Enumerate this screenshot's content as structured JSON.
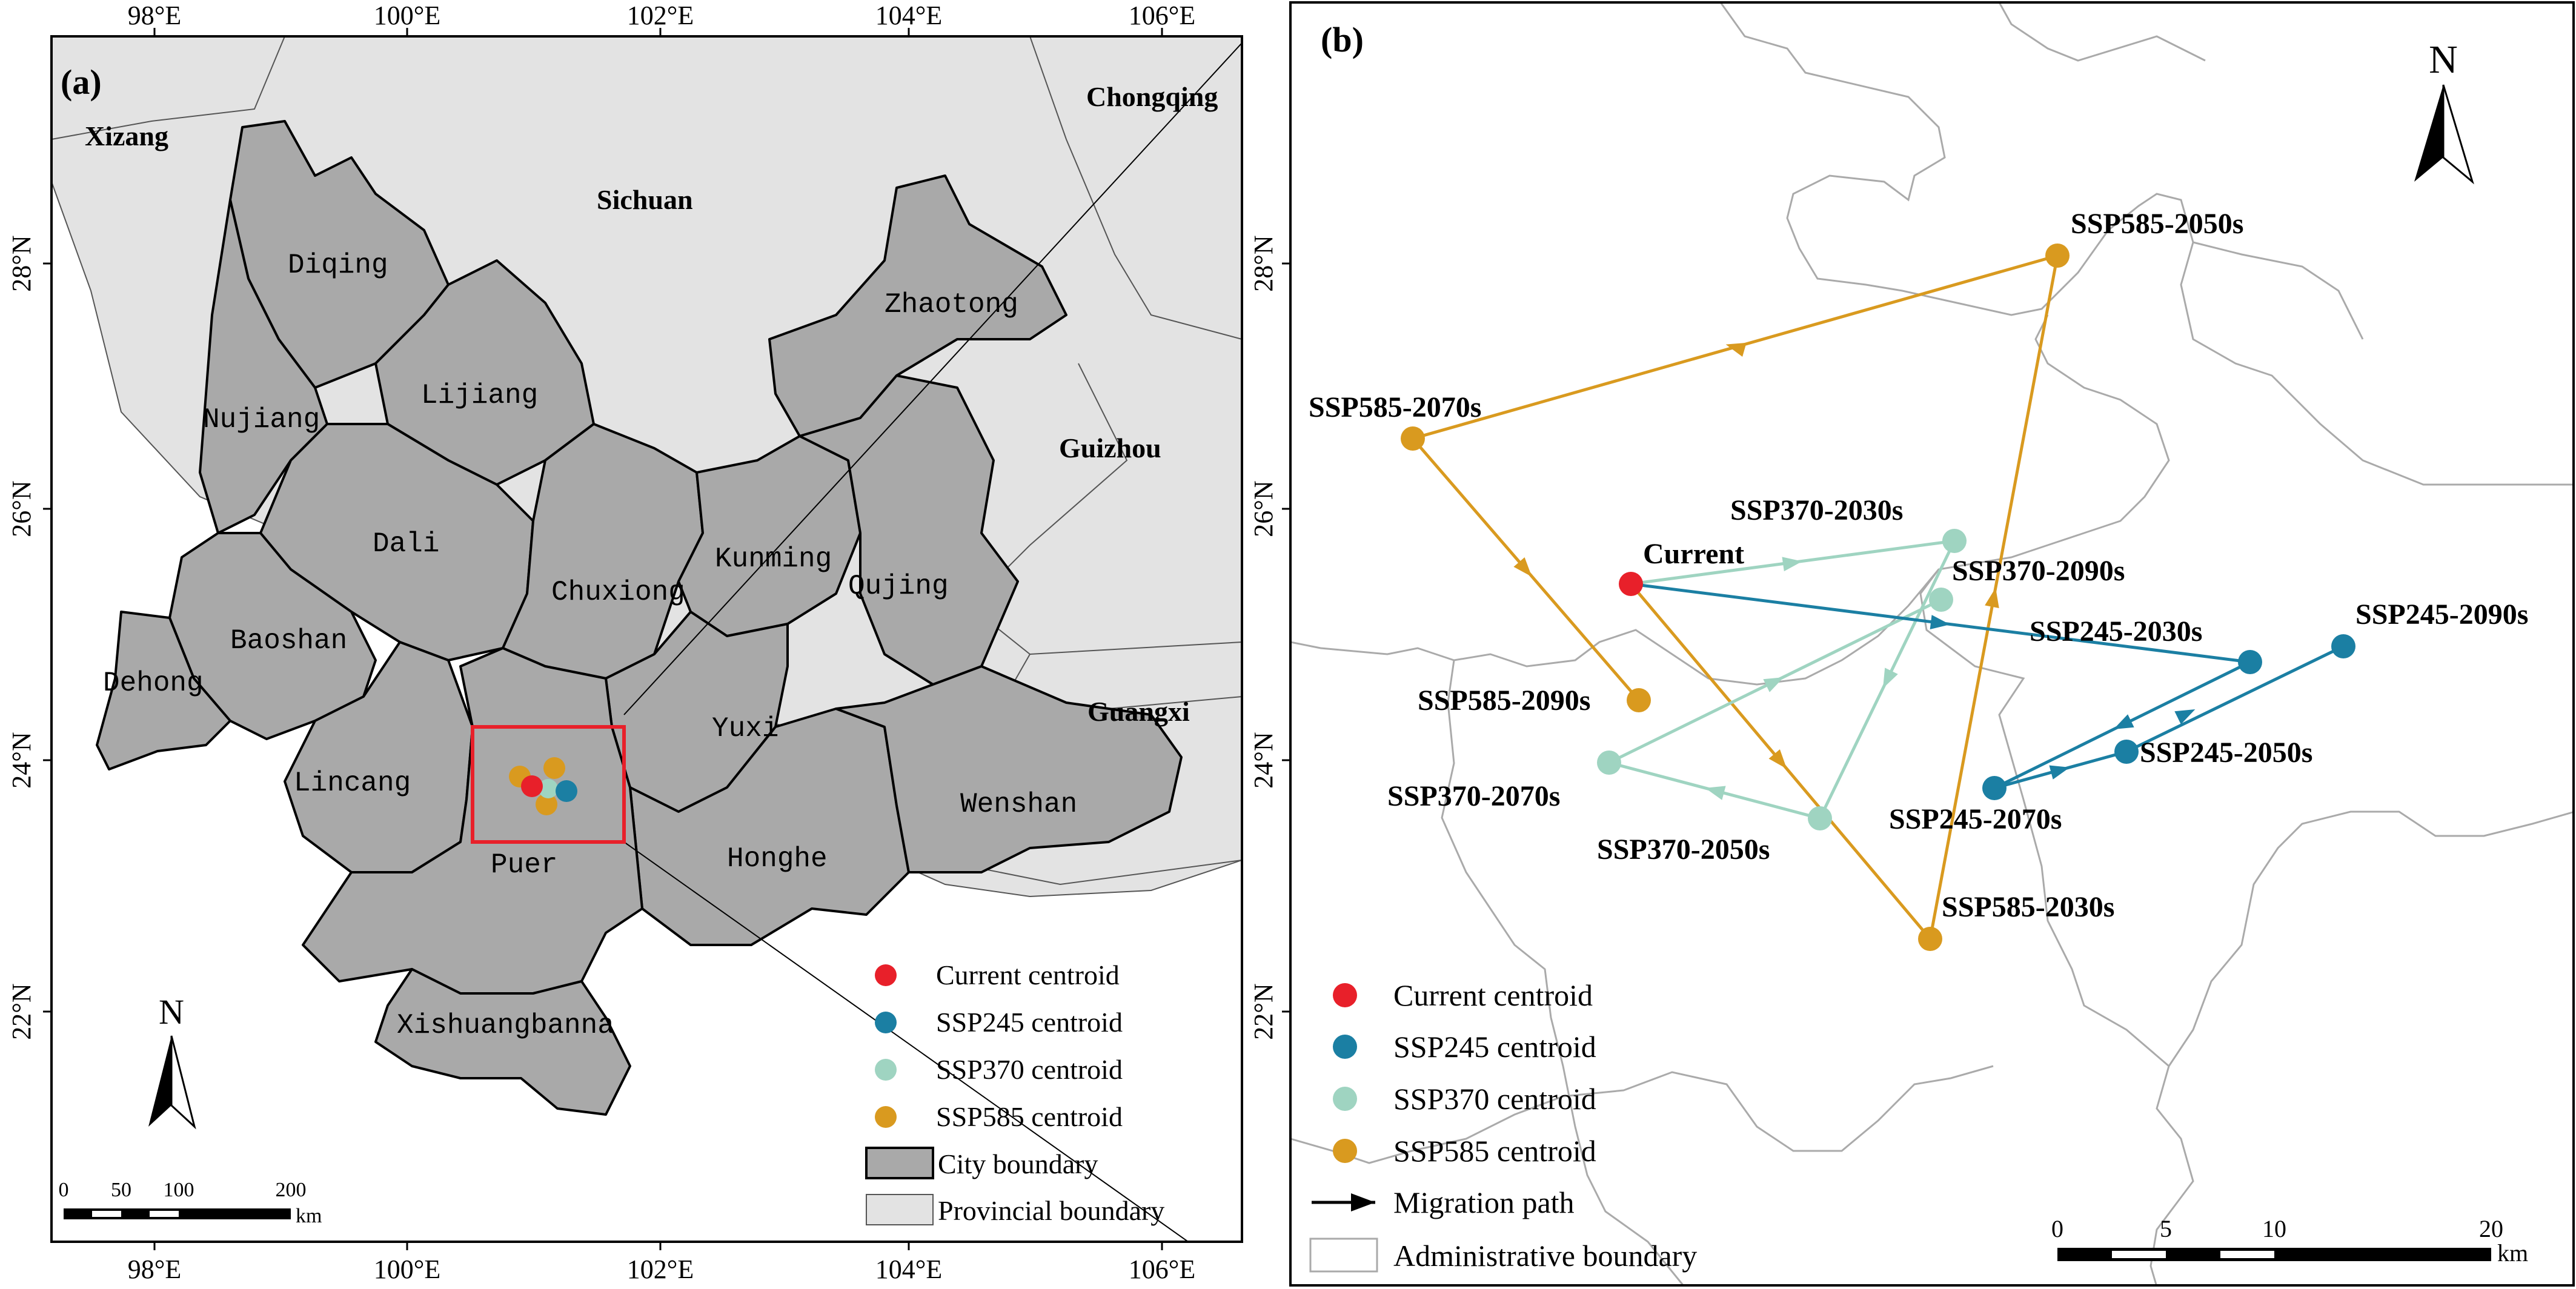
{
  "panel_a": {
    "label": "(a)",
    "top_ticks": [
      "98°E",
      "100°E",
      "102°E",
      "104°E",
      "106°E"
    ],
    "bottom_ticks": [
      "98°E",
      "100°E",
      "102°E",
      "104°E",
      "106°E"
    ],
    "left_ticks": [
      "28°N",
      "26°N",
      "24°N",
      "22°N"
    ],
    "provinces": [
      "Xizang",
      "Sichuan",
      "Chongqing",
      "Guizhou",
      "Guangxi"
    ],
    "cities": [
      "Diqing",
      "Lijiang",
      "Nujiang",
      "Zhaotong",
      "Dali",
      "Kunming",
      "Qujing",
      "Chuxiong",
      "Baoshan",
      "Dehong",
      "Lincang",
      "Yuxi",
      "Puer",
      "Honghe",
      "Wenshan",
      "Xishuangbanna"
    ],
    "legend": {
      "current": "Current centroid",
      "ssp245": "SSP245 centroid",
      "ssp370": "SSP370 centroid",
      "ssp585": "SSP585 centroid",
      "city": "City boundary",
      "province": "Provincial boundary"
    },
    "north": "N",
    "scale": {
      "ticks": [
        "0",
        "50",
        "100",
        "200"
      ],
      "unit": "km"
    }
  },
  "panel_b": {
    "label": "(b)",
    "left_ticks": [
      "28°N",
      "26°N",
      "24°N",
      "22°N"
    ],
    "points": {
      "current": "Current",
      "ssp370_2030": "SSP370-2030s",
      "ssp370_2050": "SSP370-2050s",
      "ssp370_2070": "SSP370-2070s",
      "ssp370_2090": "SSP370-2090s",
      "ssp245_2030": "SSP245-2030s",
      "ssp245_2050": "SSP245-2050s",
      "ssp245_2070": "SSP245-2070s",
      "ssp245_2090": "SSP245-2090s",
      "ssp585_2030": "SSP585-2030s",
      "ssp585_2050": "SSP585-2050s",
      "ssp585_2070": "SSP585-2070s",
      "ssp585_2090": "SSP585-2090s"
    },
    "legend": {
      "current": "Current centroid",
      "ssp245": "SSP245 centroid",
      "ssp370": "SSP370 centroid",
      "ssp585": "SSP585 centroid",
      "path": "Migration path",
      "admin": "Administrative boundary"
    },
    "north": "N",
    "scale": {
      "ticks": [
        "0",
        "5",
        "10",
        "20"
      ],
      "unit": "km"
    }
  },
  "colors": {
    "current": "#e8202a",
    "ssp245": "#1b7fa3",
    "ssp370": "#9fd4c1",
    "ssp585": "#d99a1f",
    "city_fill": "#a9a9a9",
    "province_fill": "#e3e3e3",
    "inset_box": "#e8202a"
  }
}
